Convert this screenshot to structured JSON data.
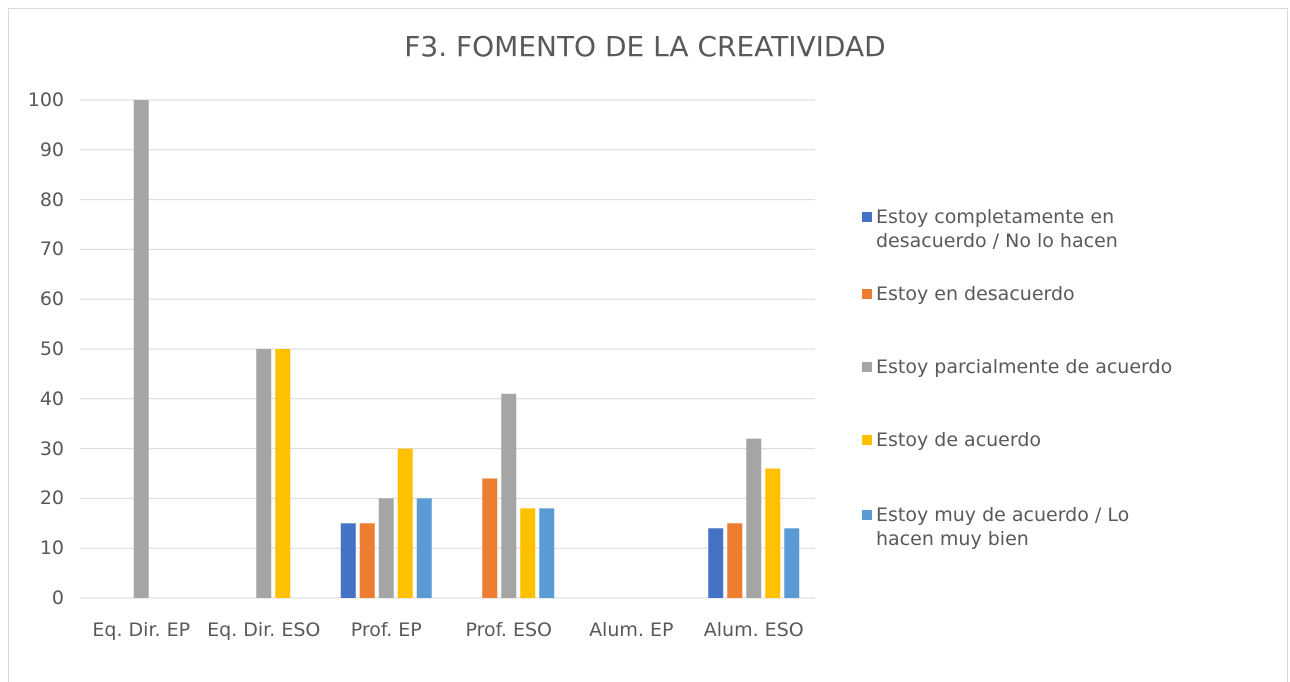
{
  "chart_data": {
    "type": "bar",
    "title": "F3. FOMENTO DE LA CREATIVIDAD",
    "categories": [
      "Eq. Dir. EP",
      "Eq. Dir. ESO",
      "Prof. EP",
      "Prof. ESO",
      "Alum. EP",
      "Alum. ESO"
    ],
    "series": [
      {
        "name": "Estoy completamente en desacuerdo / No lo hacen",
        "color": "#4472c4",
        "values": [
          0,
          0,
          15,
          0,
          0,
          14
        ]
      },
      {
        "name": "Estoy en desacuerdo",
        "color": "#ed7d31",
        "values": [
          0,
          0,
          15,
          24,
          0,
          15
        ]
      },
      {
        "name": "Estoy parcialmente de acuerdo",
        "color": "#a5a5a5",
        "values": [
          100,
          50,
          20,
          41,
          0,
          32
        ]
      },
      {
        "name": "Estoy de acuerdo",
        "color": "#ffc000",
        "values": [
          0,
          50,
          30,
          18,
          0,
          26
        ]
      },
      {
        "name": "Estoy muy de acuerdo / Lo hacen muy bien",
        "color": "#5b9bd5",
        "values": [
          0,
          0,
          20,
          18,
          0,
          14
        ]
      }
    ],
    "ylim": [
      0,
      100
    ],
    "yticks": [
      0,
      10,
      20,
      30,
      40,
      50,
      60,
      70,
      80,
      90,
      100
    ],
    "grid": true,
    "legend": "right"
  }
}
